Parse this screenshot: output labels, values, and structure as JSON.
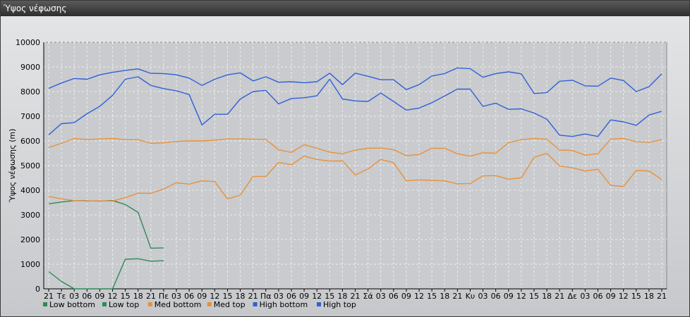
{
  "window": {
    "title": "Ύψος νέφωσης"
  },
  "chart_data": {
    "type": "line",
    "ylabel": "Ύψος νέφωσης (m)",
    "ylim": [
      0,
      10000
    ],
    "yticks": [
      0,
      1000,
      2000,
      3000,
      4000,
      5000,
      6000,
      7000,
      8000,
      9000,
      10000
    ],
    "grid": true,
    "legend_position": "bottom-left",
    "x_labels": [
      "21",
      "Τε",
      "03",
      "06",
      "09",
      "12",
      "15",
      "18",
      "21",
      "Πε",
      "03",
      "06",
      "09",
      "12",
      "15",
      "18",
      "21",
      "Πα",
      "03",
      "06",
      "09",
      "12",
      "15",
      "18",
      "21",
      "Σά",
      "03",
      "06",
      "09",
      "12",
      "15",
      "18",
      "21",
      "Κυ",
      "03",
      "06",
      "09",
      "12",
      "15",
      "18",
      "21",
      "Δε",
      "03",
      "06",
      "09",
      "12",
      "15",
      "18",
      "21"
    ],
    "series": [
      {
        "name": "Low bottom",
        "color": "#2e8b57",
        "values": [
          700,
          300,
          0,
          0,
          0,
          0,
          1200,
          1220,
          1120,
          1140,
          null,
          null,
          null,
          null,
          null,
          null,
          null,
          null,
          null,
          null,
          null,
          null,
          null,
          null,
          null,
          null,
          null,
          null,
          null,
          null,
          null,
          null,
          null,
          null,
          null,
          null,
          null,
          null,
          null,
          null,
          null,
          null,
          null,
          null,
          null,
          null,
          null,
          null,
          null
        ]
      },
      {
        "name": "Low top",
        "color": "#2e8b57",
        "values": [
          3450,
          3520,
          3580,
          3570,
          3560,
          3580,
          3420,
          3100,
          1650,
          1660,
          null,
          null,
          null,
          null,
          null,
          null,
          null,
          null,
          null,
          null,
          null,
          null,
          null,
          null,
          null,
          null,
          null,
          null,
          null,
          null,
          null,
          null,
          null,
          null,
          null,
          null,
          null,
          null,
          null,
          null,
          null,
          null,
          null,
          null,
          null,
          null,
          null,
          null,
          null
        ]
      },
      {
        "name": "Med bottom",
        "color": "#e8913a",
        "values": [
          3750,
          3650,
          3580,
          3560,
          3570,
          3560,
          3700,
          3880,
          3870,
          4050,
          4300,
          4250,
          4380,
          4350,
          3650,
          3800,
          4560,
          4560,
          5130,
          5030,
          5380,
          5250,
          5180,
          5190,
          4620,
          4860,
          5250,
          5120,
          4380,
          4420,
          4400,
          4380,
          4260,
          4270,
          4580,
          4590,
          4450,
          4500,
          5330,
          5500,
          4980,
          4910,
          4780,
          4850,
          4200,
          4150,
          4800,
          4780,
          4430
        ]
      },
      {
        "name": "Med top",
        "color": "#e8913a",
        "values": [
          5730,
          5900,
          6100,
          6050,
          6080,
          6100,
          6050,
          6050,
          5900,
          5920,
          5980,
          6000,
          6000,
          6030,
          6080,
          6080,
          6070,
          6060,
          5640,
          5530,
          5850,
          5700,
          5540,
          5480,
          5630,
          5700,
          5710,
          5650,
          5400,
          5450,
          5700,
          5700,
          5480,
          5380,
          5520,
          5500,
          5930,
          6050,
          6100,
          6070,
          5630,
          5610,
          5420,
          5480,
          6070,
          6100,
          5970,
          5940,
          6050
        ]
      },
      {
        "name": "High bottom",
        "color": "#3060d8",
        "values": [
          6250,
          6700,
          6740,
          7100,
          7400,
          7850,
          8500,
          8600,
          8250,
          8120,
          8030,
          7880,
          6650,
          7080,
          7080,
          7700,
          8000,
          8050,
          7500,
          7720,
          7750,
          7830,
          8500,
          7700,
          7620,
          7600,
          7940,
          7600,
          7250,
          7330,
          7550,
          7820,
          8100,
          8100,
          7400,
          7530,
          7280,
          7300,
          7130,
          6880,
          6230,
          6180,
          6280,
          6180,
          6850,
          6770,
          6630,
          7050,
          7200
        ]
      },
      {
        "name": "High top",
        "color": "#3060d8",
        "values": [
          8130,
          8350,
          8530,
          8500,
          8680,
          8780,
          8860,
          8920,
          8740,
          8730,
          8680,
          8550,
          8250,
          8500,
          8680,
          8760,
          8430,
          8600,
          8380,
          8400,
          8360,
          8400,
          8750,
          8280,
          8750,
          8620,
          8480,
          8480,
          8080,
          8280,
          8630,
          8730,
          8960,
          8930,
          8580,
          8730,
          8800,
          8720,
          7920,
          7960,
          8420,
          8460,
          8230,
          8220,
          8550,
          8450,
          8000,
          8200,
          8720
        ]
      }
    ]
  },
  "legend": {
    "items": [
      {
        "label": "Low bottom",
        "color": "#2e8b57"
      },
      {
        "label": "Low top",
        "color": "#2e8b57"
      },
      {
        "label": "Med bottom",
        "color": "#e8913a"
      },
      {
        "label": "Med top",
        "color": "#e8913a"
      },
      {
        "label": "High bottom",
        "color": "#3060d8"
      },
      {
        "label": "High top",
        "color": "#3060d8"
      }
    ]
  }
}
